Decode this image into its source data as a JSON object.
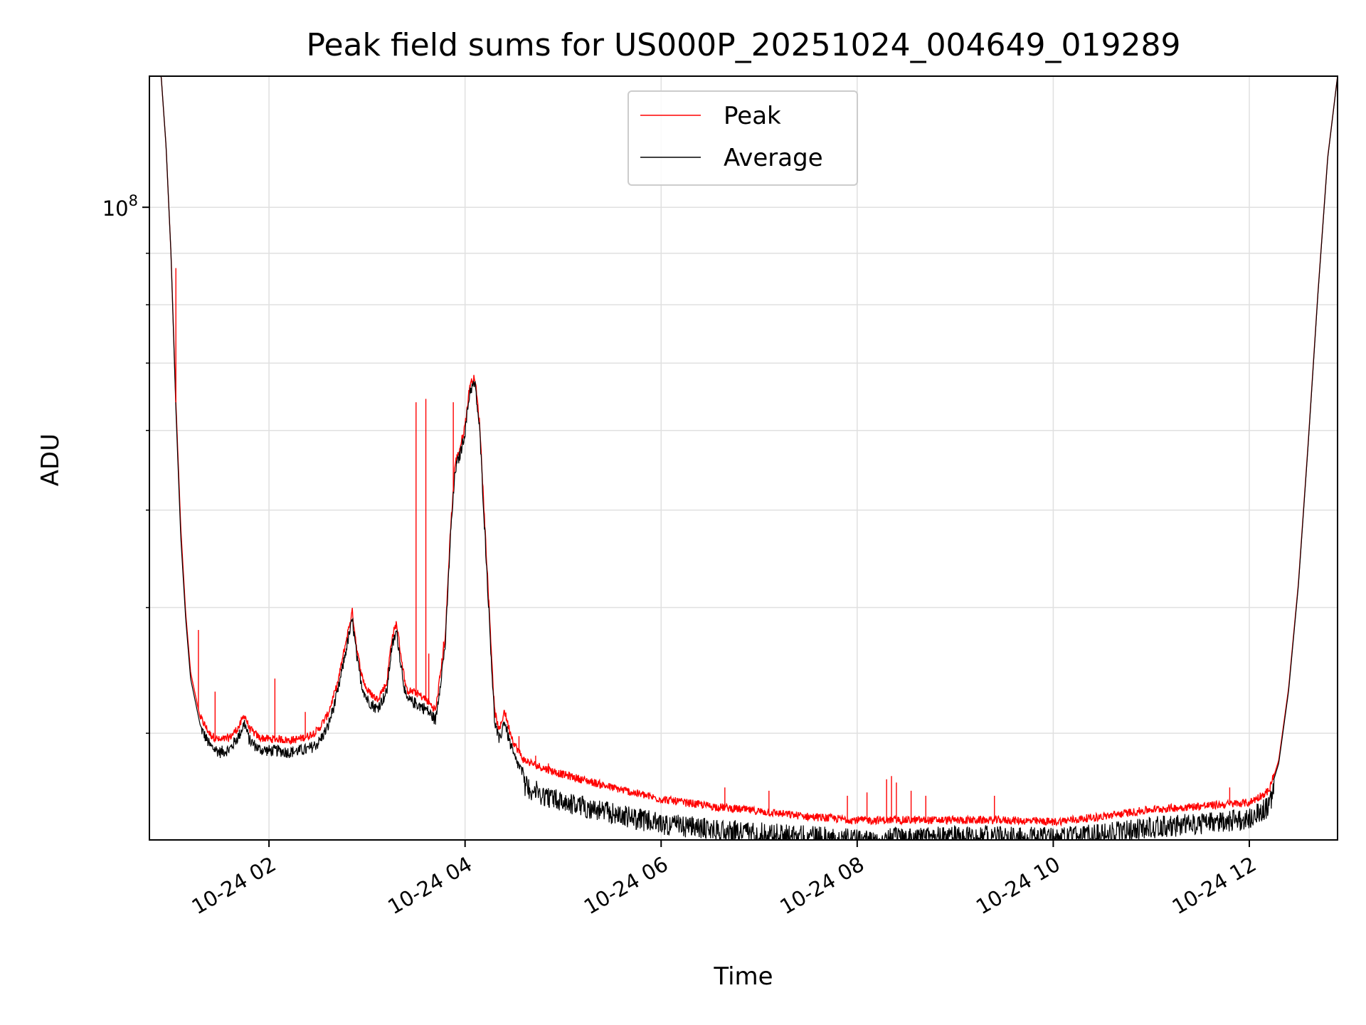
{
  "chart_data": {
    "type": "line",
    "title": "Peak field sums for US000P_20251024_004649_019289",
    "xlabel": "Time",
    "ylabel": "ADU",
    "yscale": "log",
    "xlim": [
      0.78,
      12.9
    ],
    "ylim": [
      23500000,
      135000000
    ],
    "y_major_tick": {
      "value": 100000000,
      "base": "10",
      "exponent": "8"
    },
    "y_minor_ticks": [
      30000000,
      40000000,
      50000000,
      60000000,
      70000000,
      80000000,
      90000000,
      200000000
    ],
    "x_ticks": [
      {
        "value": 2,
        "label": "10-24 02"
      },
      {
        "value": 4,
        "label": "10-24 04"
      },
      {
        "value": 6,
        "label": "10-24 06"
      },
      {
        "value": 8,
        "label": "10-24 08"
      },
      {
        "value": 10,
        "label": "10-24 10"
      },
      {
        "value": 12,
        "label": "10-24 12"
      }
    ],
    "grid": true,
    "legend": {
      "location": "upper-center"
    },
    "series": [
      {
        "name": "Peak",
        "color": "#ff0000"
      },
      {
        "name": "Average",
        "color": "#000000"
      }
    ],
    "x": [
      0.78,
      0.9,
      0.95,
      1.0,
      1.05,
      1.1,
      1.15,
      1.2,
      1.3,
      1.4,
      1.5,
      1.6,
      1.7,
      1.75,
      1.8,
      1.9,
      2.0,
      2.1,
      2.2,
      2.3,
      2.4,
      2.5,
      2.6,
      2.7,
      2.8,
      2.85,
      2.9,
      2.95,
      3.0,
      3.1,
      3.2,
      3.25,
      3.3,
      3.35,
      3.4,
      3.5,
      3.6,
      3.7,
      3.8,
      3.85,
      3.9,
      3.95,
      4.0,
      4.05,
      4.1,
      4.15,
      4.2,
      4.3,
      4.35,
      4.4,
      4.45,
      4.5,
      4.6,
      4.8,
      5.0,
      5.5,
      6.0,
      6.5,
      7.0,
      7.5,
      8.0,
      8.5,
      9.0,
      9.5,
      10.0,
      10.5,
      11.0,
      11.5,
      12.0,
      12.2,
      12.3,
      12.4,
      12.5,
      12.6,
      12.7,
      12.8,
      12.9
    ],
    "average_values": [
      135000000,
      135000000,
      115000000,
      90000000,
      63000000,
      47000000,
      39000000,
      34000000,
      30500000,
      29200000,
      28800000,
      29000000,
      30000000,
      30800000,
      29600000,
      29000000,
      28900000,
      28900000,
      28800000,
      28900000,
      29000000,
      29400000,
      30500000,
      33000000,
      37000000,
      39000000,
      35500000,
      33500000,
      32500000,
      31800000,
      33000000,
      36500000,
      38000000,
      35000000,
      32500000,
      32200000,
      31800000,
      31000000,
      37000000,
      47000000,
      55000000,
      57000000,
      60000000,
      66000000,
      67000000,
      60000000,
      48000000,
      31000000,
      29500000,
      31000000,
      29600000,
      28500000,
      27300000,
      26700000,
      26300000,
      25600000,
      25000000,
      24700000,
      24500000,
      24300000,
      24100000,
      24200000,
      24300000,
      24300000,
      24200000,
      24400000,
      24800000,
      25000000,
      25300000,
      26000000,
      28000000,
      33000000,
      42000000,
      58000000,
      82000000,
      112000000,
      135000000
    ],
    "peak_values": [
      135000000,
      135000000,
      115000000,
      90000000,
      64000000,
      48000000,
      39500000,
      34500000,
      31000000,
      29800000,
      29400000,
      29600000,
      30400000,
      31200000,
      30200000,
      29600000,
      29500000,
      29500000,
      29400000,
      29500000,
      29700000,
      30100000,
      31200000,
      33500000,
      37500000,
      39500000,
      36000000,
      34000000,
      33000000,
      32300000,
      33500000,
      37000000,
      38500000,
      35500000,
      33000000,
      32800000,
      32300000,
      31500000,
      37500000,
      47500000,
      55500000,
      57500000,
      60500000,
      66500000,
      67500000,
      60500000,
      48500000,
      31500000,
      30000000,
      31500000,
      30200000,
      29200000,
      28100000,
      27600000,
      27200000,
      26400000,
      25700000,
      25300000,
      25000000,
      24700000,
      24500000,
      24500000,
      24500000,
      24500000,
      24400000,
      24700000,
      25100000,
      25300000,
      25500000,
      26200000,
      28200000,
      33200000,
      42200000,
      58200000,
      82200000,
      112200000,
      135000000
    ],
    "peak_spikes": [
      {
        "x": 1.05,
        "y": 87000000
      },
      {
        "x": 1.28,
        "y": 38000000
      },
      {
        "x": 1.45,
        "y": 33000000
      },
      {
        "x": 2.06,
        "y": 34000000
      },
      {
        "x": 2.37,
        "y": 31500000
      },
      {
        "x": 3.5,
        "y": 64000000
      },
      {
        "x": 3.6,
        "y": 64500000
      },
      {
        "x": 3.63,
        "y": 36000000
      },
      {
        "x": 3.78,
        "y": 37000000
      },
      {
        "x": 3.88,
        "y": 64000000
      },
      {
        "x": 4.55,
        "y": 29800000
      },
      {
        "x": 4.72,
        "y": 28500000
      },
      {
        "x": 4.85,
        "y": 28000000
      },
      {
        "x": 5.85,
        "y": 26000000
      },
      {
        "x": 6.65,
        "y": 26500000
      },
      {
        "x": 7.1,
        "y": 26300000
      },
      {
        "x": 7.9,
        "y": 26000000
      },
      {
        "x": 8.1,
        "y": 26200000
      },
      {
        "x": 8.3,
        "y": 27000000
      },
      {
        "x": 8.35,
        "y": 27200000
      },
      {
        "x": 8.4,
        "y": 26800000
      },
      {
        "x": 8.55,
        "y": 26300000
      },
      {
        "x": 8.7,
        "y": 26000000
      },
      {
        "x": 9.4,
        "y": 26000000
      },
      {
        "x": 11.8,
        "y": 26500000
      }
    ]
  }
}
